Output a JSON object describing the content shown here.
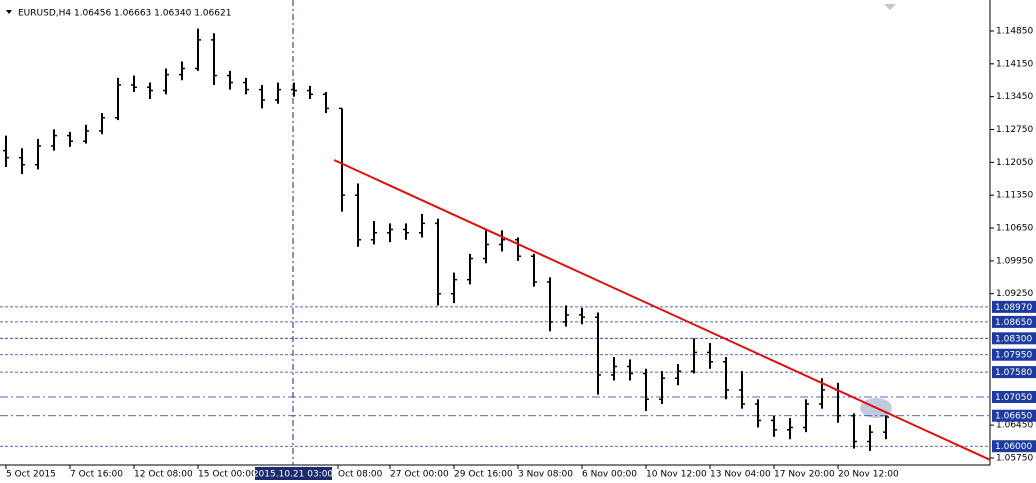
{
  "chart_data": {
    "type": "ohlc",
    "title": "EURUSD,H4  1.06456 1.06663 1.06340 1.06621",
    "color": "#000000",
    "x": [
      0,
      4,
      8,
      12,
      16,
      20,
      24,
      28,
      32,
      36,
      40,
      44,
      48,
      52,
      56,
      60,
      64,
      68,
      72,
      76,
      80,
      84,
      88,
      92,
      96,
      100,
      104,
      108,
      112,
      116,
      120,
      124,
      128,
      132,
      136,
      140,
      144,
      148,
      152,
      156,
      160,
      164,
      168,
      172,
      176,
      180,
      184,
      188,
      192,
      196,
      200,
      204,
      208,
      212,
      216,
      220
    ],
    "open": [
      1.123,
      1.1215,
      1.12,
      1.124,
      1.1262,
      1.125,
      1.1272,
      1.13,
      1.137,
      1.1365,
      1.1358,
      1.1392,
      1.1405,
      1.1466,
      1.139,
      1.1375,
      1.136,
      1.1338,
      1.136,
      1.1358,
      1.135,
      1.132,
      1.1135,
      1.104,
      1.1055,
      1.1062,
      1.1055,
      1.1075,
      1.0925,
      1.0955,
      1.1,
      1.103,
      1.104,
      1.1005,
      1.095,
      1.0865,
      1.088,
      1.0875,
      1.0752,
      1.077,
      1.0755,
      1.07,
      1.0745,
      1.076,
      1.08,
      1.078,
      1.072,
      1.069,
      1.0655,
      1.0635,
      1.064,
      1.069,
      1.072,
      1.0665,
      1.061,
      1.063
    ],
    "high": [
      1.1262,
      1.1235,
      1.1255,
      1.1275,
      1.127,
      1.1285,
      1.131,
      1.1385,
      1.139,
      1.1375,
      1.1405,
      1.142,
      1.149,
      1.148,
      1.14,
      1.1385,
      1.137,
      1.1375,
      1.1375,
      1.1368,
      1.1355,
      1.132,
      1.116,
      1.108,
      1.1075,
      1.1075,
      1.1095,
      1.1085,
      1.097,
      1.101,
      1.106,
      1.106,
      1.1045,
      1.101,
      1.096,
      1.09,
      1.0895,
      1.0885,
      1.079,
      1.0785,
      1.0765,
      1.076,
      1.0775,
      1.083,
      1.082,
      1.079,
      1.076,
      1.07,
      1.0665,
      1.066,
      1.07,
      1.0745,
      1.0735,
      1.067,
      1.0645,
      1.0665
    ],
    "low": [
      1.1195,
      1.118,
      1.119,
      1.123,
      1.1238,
      1.1245,
      1.1265,
      1.1295,
      1.1355,
      1.134,
      1.135,
      1.138,
      1.14,
      1.137,
      1.136,
      1.135,
      1.132,
      1.133,
      1.1345,
      1.134,
      1.131,
      1.11,
      1.1025,
      1.103,
      1.1035,
      1.104,
      1.1045,
      1.09,
      1.0905,
      1.0945,
      1.099,
      1.1015,
      1.0995,
      1.094,
      1.0845,
      1.0855,
      1.086,
      1.071,
      1.074,
      1.074,
      1.0675,
      1.069,
      1.073,
      1.0755,
      1.0765,
      1.07,
      1.068,
      1.064,
      1.062,
      1.0615,
      1.063,
      1.068,
      1.065,
      1.0595,
      1.059,
      1.0615
    ],
    "close": [
      1.1215,
      1.12,
      1.124,
      1.1262,
      1.125,
      1.1272,
      1.13,
      1.137,
      1.1365,
      1.1358,
      1.1392,
      1.1405,
      1.1466,
      1.139,
      1.1375,
      1.136,
      1.1338,
      1.136,
      1.1358,
      1.135,
      1.132,
      1.1135,
      1.104,
      1.1055,
      1.1062,
      1.1055,
      1.1075,
      1.0925,
      1.0955,
      1.1,
      1.103,
      1.104,
      1.1005,
      1.095,
      1.0865,
      1.088,
      1.0875,
      1.0752,
      1.077,
      1.0755,
      1.07,
      1.0745,
      1.076,
      1.08,
      1.078,
      1.072,
      1.069,
      1.0655,
      1.0635,
      1.064,
      1.069,
      1.072,
      1.0665,
      1.061,
      1.063,
      1.0662
    ],
    "xlim": [
      -1.5,
      246
    ],
    "ylim": [
      1.056,
      1.1551
    ],
    "xticks": [
      {
        "value": 0,
        "label": "5 Oct 2015"
      },
      {
        "value": 16,
        "label": "7 Oct 16:00"
      },
      {
        "value": 32,
        "label": "12 Oct 08:00"
      },
      {
        "value": 48,
        "label": "15 Oct 00:00"
      },
      {
        "value": 83,
        "label": "Oct 08:00"
      },
      {
        "value": 96,
        "label": "27 Oct 00:00"
      },
      {
        "value": 112,
        "label": "29 Oct 16:00"
      },
      {
        "value": 128,
        "label": "3 Nov 08:00"
      },
      {
        "value": 144,
        "label": "6 Nov 00:00"
      },
      {
        "value": 160,
        "label": "10 Nov 12:00"
      },
      {
        "value": 176,
        "label": "13 Nov 04:00"
      },
      {
        "value": 192,
        "label": "17 Nov 20:00"
      },
      {
        "value": 208,
        "label": "20 Nov 12:00"
      }
    ],
    "yticks": [
      {
        "value": 1.1485,
        "label": "1.14850"
      },
      {
        "value": 1.1415,
        "label": "1.14150"
      },
      {
        "value": 1.1345,
        "label": "1.13450"
      },
      {
        "value": 1.1275,
        "label": "1.12750"
      },
      {
        "value": 1.1205,
        "label": "1.12050"
      },
      {
        "value": 1.1135,
        "label": "1.11350"
      },
      {
        "value": 1.1065,
        "label": "1.10650"
      },
      {
        "value": 1.0995,
        "label": "1.09950"
      },
      {
        "value": 1.0925,
        "label": "1.09250"
      },
      {
        "value": 1.0645,
        "label": "1.06450"
      },
      {
        "value": 1.0575,
        "label": "1.05750"
      }
    ],
    "crosshair": {
      "x": 71.75,
      "label": "2015.10.21 03:00",
      "color": "#1c2a6e"
    },
    "trendline": {
      "x": [
        82,
        246
      ],
      "y": [
        1.121,
        1.0571
      ],
      "color": "#e01010"
    },
    "levels": [
      {
        "value": 1.0897,
        "label": "1.08970",
        "style": "dash",
        "color": "#1c3aa0"
      },
      {
        "value": 1.0865,
        "label": "1.08650",
        "style": "dash",
        "color": "#1c3aa0"
      },
      {
        "value": 1.083,
        "label": "1.08300",
        "style": "dash",
        "color": "#1c3aa0"
      },
      {
        "value": 1.0795,
        "label": "1.07950",
        "style": "dash",
        "color": "#1c3aa0"
      },
      {
        "value": 1.0758,
        "label": "1.07580",
        "style": "dash",
        "color": "#1c3aa0"
      },
      {
        "value": 1.0705,
        "label": "1.07050",
        "style": "dashdot",
        "color": "#1c3aa0"
      },
      {
        "value": 1.0665,
        "label": "1.06650",
        "style": "dashdot",
        "color": "#1c3aa0"
      },
      {
        "value": 1.06,
        "label": "1.06000",
        "style": "dash",
        "color": "#1c3aa0"
      }
    ]
  }
}
